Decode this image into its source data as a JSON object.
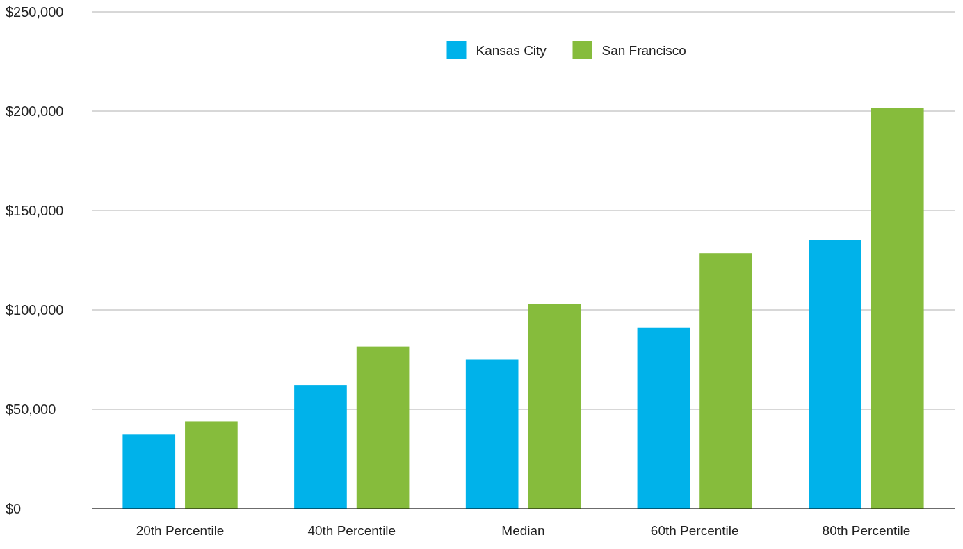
{
  "chart_data": {
    "type": "bar",
    "categories": [
      "20th Percentile",
      "40th Percentile",
      "Median",
      "60th Percentile",
      "80th Percentile"
    ],
    "series": [
      {
        "name": "Kansas City",
        "color": "#00b2ea",
        "values": [
          37300,
          62200,
          75000,
          91000,
          135200
        ]
      },
      {
        "name": "San Francisco",
        "color": "#86bc3c",
        "values": [
          43900,
          81600,
          103000,
          128600,
          201600
        ]
      }
    ],
    "ylim": [
      0,
      250000
    ],
    "yticks": [
      {
        "value": 0,
        "label": "$0"
      },
      {
        "value": 50000,
        "label": "$50,000"
      },
      {
        "value": 100000,
        "label": "$100,000"
      },
      {
        "value": 150000,
        "label": "$150,000"
      },
      {
        "value": 200000,
        "label": "$200,000"
      },
      {
        "value": 250000,
        "label": "$250,000"
      }
    ],
    "grid": "y",
    "legend": "top"
  }
}
